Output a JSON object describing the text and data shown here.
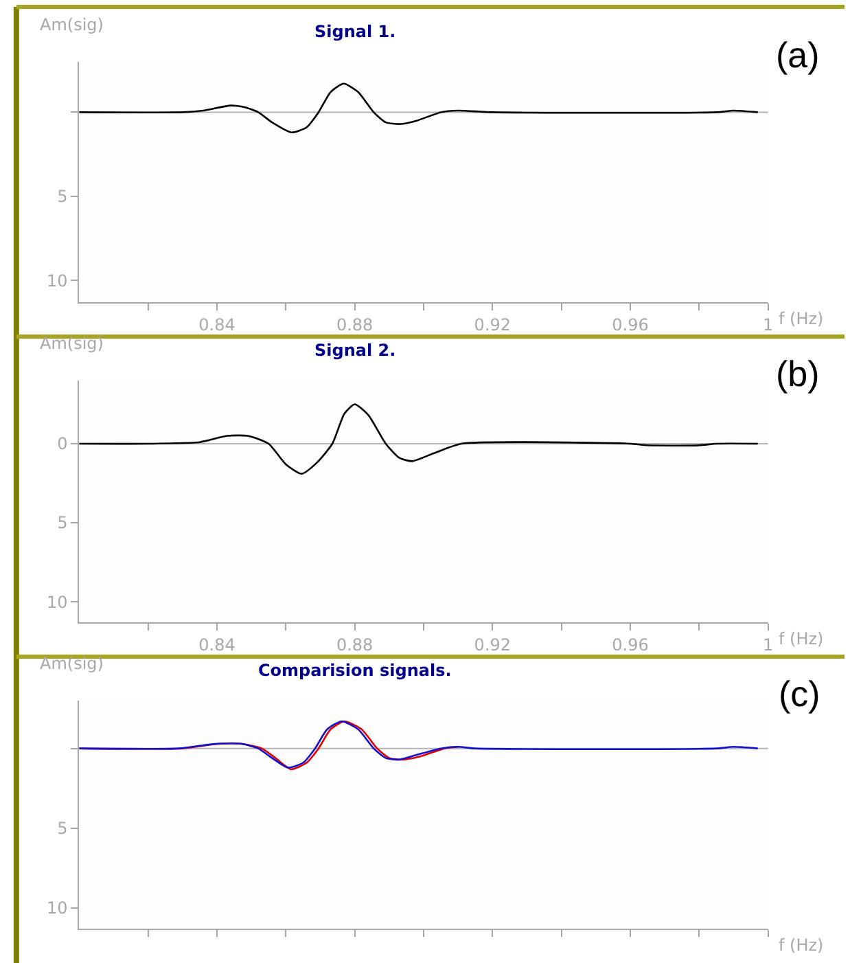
{
  "chart_data": [
    {
      "type": "line",
      "title": "Signal 1.",
      "xlabel": "f (Hz)",
      "ylabel": "Am(sig)",
      "annotations": [
        "(a)"
      ],
      "xlim": [
        0.8,
        1.0
      ],
      "ylim": [
        -11.3,
        3
      ],
      "xticks": [
        {
          "value": 0.82,
          "label": null
        },
        0.84,
        {
          "value": 0.86,
          "label": null
        },
        0.88,
        {
          "value": 0.9,
          "label": null
        },
        0.92,
        {
          "value": 0.94,
          "label": null
        },
        0.96,
        {
          "value": 0.98,
          "label": null
        },
        1
      ],
      "yticks": [
        {
          "value": 0,
          "label": null
        },
        {
          "value": -5,
          "label": "5"
        },
        {
          "value": -10,
          "label": "10"
        }
      ],
      "grid": false,
      "ref_lines": [
        {
          "axis": "y",
          "value": 0,
          "color": "#b4b4b4"
        }
      ],
      "series": [
        {
          "color": "#000000",
          "x": [
            0.8,
            0.83,
            0.836,
            0.844,
            0.848,
            0.852,
            0.856,
            0.8617,
            0.866,
            0.8695,
            0.873,
            0.8768,
            0.881,
            0.8855,
            0.889,
            0.8933,
            0.898,
            0.905,
            0.91,
            0.92,
            0.985,
            0.99,
            0.997
          ],
          "values": [
            0,
            0,
            0.1,
            0.4,
            0.3,
            0,
            -0.6,
            -1.2,
            -0.9,
            0,
            1.2,
            1.7,
            1.2,
            0,
            -0.6,
            -0.7,
            -0.5,
            0,
            0.1,
            0,
            0,
            0.1,
            0
          ]
        }
      ]
    },
    {
      "type": "line",
      "title": "Signal 2.",
      "xlabel": "f (Hz)",
      "ylabel": "Am(sig)",
      "annotations": [
        "(b)"
      ],
      "xlim": [
        0.8,
        1.0
      ],
      "ylim": [
        -11.3,
        4
      ],
      "xticks": [
        {
          "value": 0.82,
          "label": null
        },
        0.84,
        {
          "value": 0.86,
          "label": null
        },
        0.88,
        {
          "value": 0.9,
          "label": null
        },
        0.92,
        {
          "value": 0.94,
          "label": null
        },
        0.96,
        {
          "value": 0.98,
          "label": null
        },
        1
      ],
      "yticks": [
        0,
        {
          "value": -5,
          "label": "5"
        },
        {
          "value": -10,
          "label": "10"
        }
      ],
      "grid": false,
      "ref_lines": [
        {
          "axis": "y",
          "value": 0,
          "color": "#b4b4b4"
        }
      ],
      "series": [
        {
          "color": "#000000",
          "x": [
            0.8,
            0.82,
            0.835,
            0.843,
            0.849,
            0.855,
            0.86,
            0.8646,
            0.869,
            0.8735,
            0.877,
            0.88,
            0.884,
            0.889,
            0.893,
            0.8967,
            0.903,
            0.911,
            0.96,
            0.965,
            0.98,
            0.985,
            0.997
          ],
          "values": [
            0,
            0,
            0.1,
            0.5,
            0.5,
            0,
            -1.3,
            -1.9,
            -1.2,
            0,
            1.9,
            2.5,
            1.8,
            0,
            -0.9,
            -1.1,
            -0.6,
            0,
            0,
            -0.1,
            -0.1,
            0,
            0
          ]
        }
      ]
    },
    {
      "type": "line",
      "title": "Comparision signals.",
      "xlabel": "f (Hz)",
      "ylabel": "Am(sig)",
      "annotations": [
        "(c)"
      ],
      "xlim": [
        0.8,
        1.0
      ],
      "ylim": [
        -11.3,
        3
      ],
      "tick_labels": "y",
      "xticks": [
        {
          "value": 0.82,
          "label": null
        },
        {
          "value": 0.84,
          "label": null
        },
        {
          "value": 0.86,
          "label": null
        },
        {
          "value": 0.88,
          "label": null
        },
        {
          "value": 0.9,
          "label": null
        },
        {
          "value": 0.92,
          "label": null
        },
        {
          "value": 0.94,
          "label": null
        },
        {
          "value": 0.96,
          "label": null
        },
        {
          "value": 0.98,
          "label": null
        },
        {
          "value": 1,
          "label": null
        }
      ],
      "yticks": [
        {
          "value": 0,
          "label": null
        },
        {
          "value": -5,
          "label": "5"
        },
        {
          "value": -10,
          "label": "10"
        }
      ],
      "grid": false,
      "ref_lines": [
        {
          "axis": "y",
          "value": 0,
          "color": "#b4b4b4"
        }
      ],
      "series": [
        {
          "color": "#e00000",
          "x": [
            0.8,
            0.83,
            0.837,
            0.841,
            0.847,
            0.853,
            0.857,
            0.8615,
            0.866,
            0.8695,
            0.873,
            0.877,
            0.882,
            0.8865,
            0.89,
            0.894,
            0.899,
            0.906,
            0.91
          ],
          "values": [
            0,
            0,
            0.2,
            0.3,
            0.3,
            0,
            -0.6,
            -1.3,
            -0.9,
            0,
            1.2,
            1.7,
            1.2,
            0,
            -0.6,
            -0.7,
            -0.5,
            0,
            0.1
          ]
        },
        {
          "color": "#1010d0",
          "x": [
            0.8,
            0.829,
            0.836,
            0.84,
            0.847,
            0.852,
            0.856,
            0.8606,
            0.865,
            0.8685,
            0.872,
            0.8762,
            0.881,
            0.8855,
            0.889,
            0.8929,
            0.898,
            0.905,
            0.91,
            0.915,
            0.985,
            0.99,
            0.997
          ],
          "values": [
            0,
            0,
            0.2,
            0.3,
            0.3,
            0,
            -0.6,
            -1.2,
            -0.9,
            0,
            1.2,
            1.7,
            1.2,
            0,
            -0.6,
            -0.7,
            -0.4,
            0,
            0.1,
            0,
            0,
            0.1,
            0
          ]
        }
      ]
    }
  ]
}
